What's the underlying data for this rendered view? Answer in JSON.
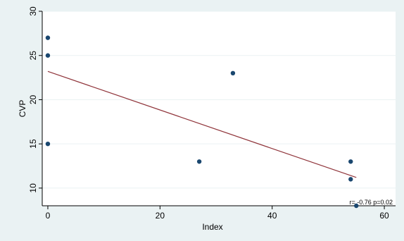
{
  "chart_data": {
    "type": "scatter",
    "title": "",
    "xlabel": "Index",
    "ylabel": "CVP",
    "xlim": [
      -1,
      62
    ],
    "ylim": [
      8,
      30
    ],
    "xticks": [
      0,
      20,
      40,
      60
    ],
    "yticks": [
      10,
      15,
      20,
      25,
      30
    ],
    "grid": true,
    "series": [
      {
        "type": "scatter",
        "color": "#1a476f",
        "points": [
          {
            "x": 0,
            "y": 27
          },
          {
            "x": 0,
            "y": 25
          },
          {
            "x": 0,
            "y": 15
          },
          {
            "x": 27,
            "y": 13
          },
          {
            "x": 33,
            "y": 23
          },
          {
            "x": 54,
            "y": 13
          },
          {
            "x": 54,
            "y": 11
          },
          {
            "x": 55,
            "y": 8
          }
        ]
      },
      {
        "type": "line",
        "color": "#90353b",
        "points": [
          {
            "x": 0,
            "y": 23.2
          },
          {
            "x": 55,
            "y": 11.2
          }
        ]
      }
    ],
    "annotation": "r= -0.76  p=0.02"
  }
}
